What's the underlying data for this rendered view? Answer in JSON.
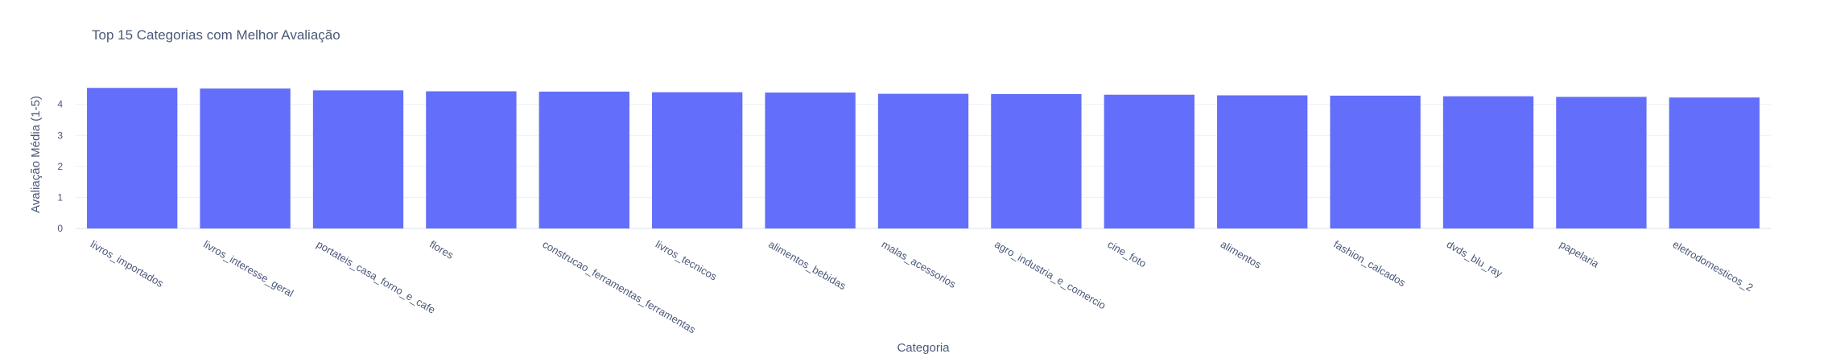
{
  "chart_data": {
    "type": "bar",
    "title": "Top 15 Categorias com Melhor Avaliação",
    "xlabel": "Categoria",
    "ylabel": "Avaliação Média (1-5)",
    "categories": [
      "livros_importados",
      "livros_interesse_geral",
      "portateis_casa_forno_e_cafe",
      "flores",
      "construcao_ferramentas_ferramentas",
      "livros_tecnicos",
      "alimentos_bebidas",
      "malas_acessorios",
      "agro_industria_e_comercio",
      "cine_foto",
      "alimentos",
      "fashion_calcados",
      "dvds_blu_ray",
      "papelaria",
      "eletrodomesticos_2"
    ],
    "values": [
      4.53,
      4.51,
      4.45,
      4.42,
      4.41,
      4.39,
      4.38,
      4.34,
      4.33,
      4.31,
      4.29,
      4.28,
      4.26,
      4.24,
      4.22
    ],
    "yticks": [
      0,
      1,
      2,
      3,
      4
    ],
    "ylim": [
      0,
      4.77
    ],
    "grid": true,
    "colors": {
      "bar": "#636efa",
      "grid": "#ebeff5",
      "text": "#4a5878"
    }
  }
}
